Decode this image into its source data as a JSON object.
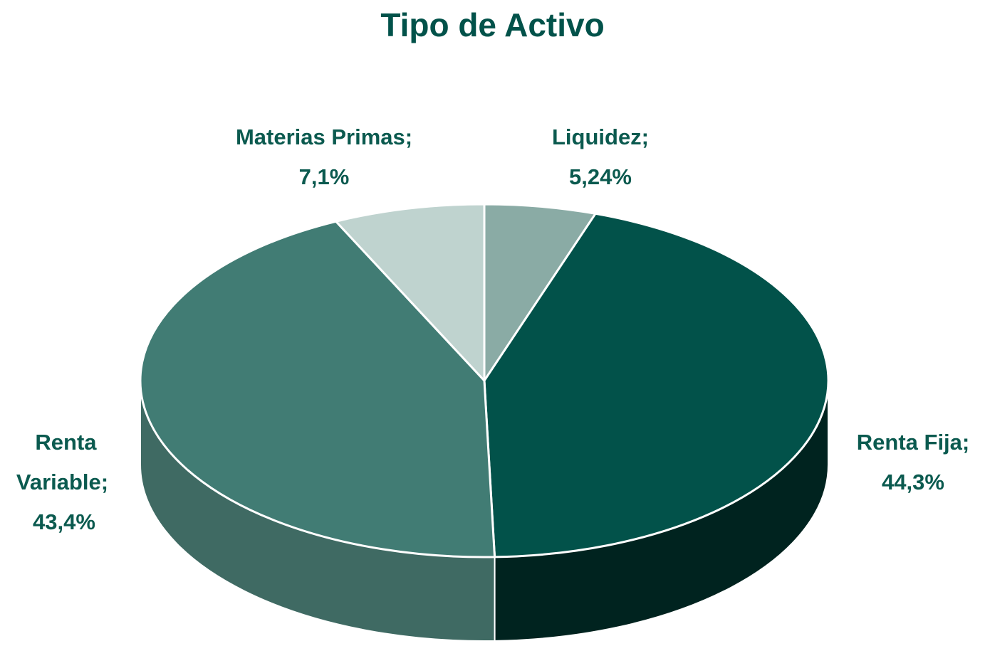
{
  "chart_data": {
    "type": "pie3d",
    "title": "Tipo de Activo",
    "categories": [
      "Liquidez;",
      "Renta Fija;",
      "Renta Variable;",
      "Materias Primas;"
    ],
    "values": [
      5.24,
      44.3,
      43.4,
      7.1
    ],
    "value_labels": [
      "5,24%",
      "44,3%",
      "43,4%",
      "7,1%"
    ],
    "colors": [
      "#8aaba5",
      "#02524a",
      "#417c74",
      "#bfd3cf"
    ],
    "side_colors": [
      "#6f8f89",
      "#00231f",
      "#3f6a63",
      "#9fb5b1"
    ]
  }
}
